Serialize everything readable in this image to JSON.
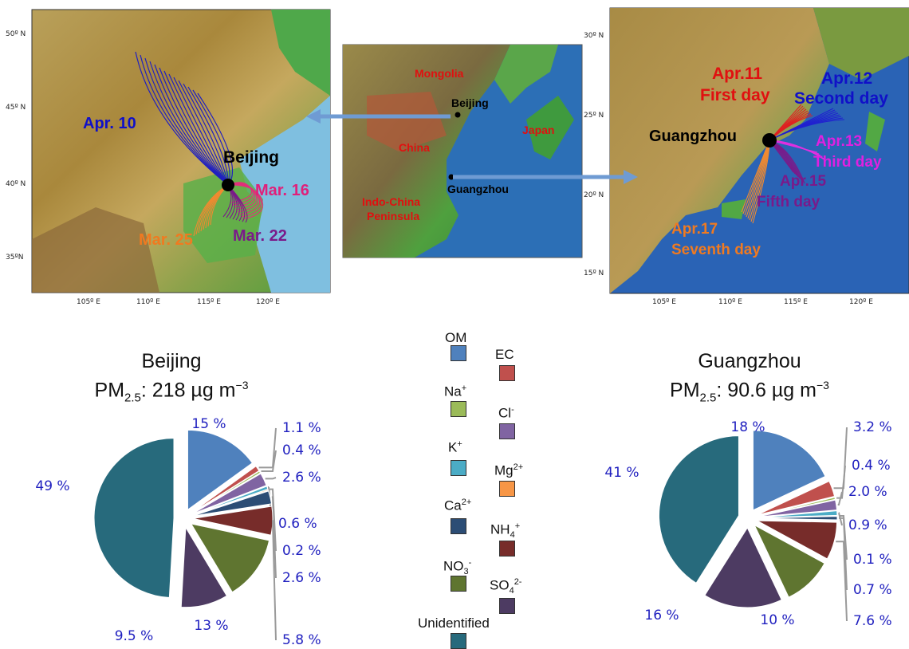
{
  "colors": {
    "OM": "#4f81bd",
    "EC": "#c0504d",
    "Na": "#9bbb59",
    "Cl": "#8064a2",
    "K": "#4bacc6",
    "Mg": "#f79646",
    "Ca": "#2c4d75",
    "NH4": "#772c2a",
    "NO3": "#5f7530",
    "SO4": "#4d3b62",
    "Unidentified": "#276a7c",
    "pct_text": "#1f1fbf"
  },
  "maps": {
    "beijing": {
      "lat_ticks": [
        "50º N",
        "45º N",
        "40º N",
        "35ºN"
      ],
      "lon_ticks": [
        "105º E",
        "110º E",
        "115º E",
        "120º E"
      ],
      "city": "Beijing",
      "dates": {
        "apr10": "Apr. 10",
        "mar16": "Mar. 16",
        "mar22": "Mar. 22",
        "mar25": "Mar. 25"
      }
    },
    "center": {
      "labels": {
        "mongolia": "Mongolia",
        "beijing": "Beijing",
        "china": "China",
        "japan": "Japan",
        "guangzhou": "Guangzhou",
        "indochina": "Indo-China",
        "peninsula": "Peninsula"
      }
    },
    "guangzhou": {
      "lat_ticks": [
        "30º N",
        "25º N",
        "20º N",
        "15º N"
      ],
      "lon_ticks": [
        "105º E",
        "110º E",
        "115º E",
        "120º E"
      ],
      "city": "Guangzhou",
      "dates": {
        "apr11": "Apr.11",
        "first": "First day",
        "apr12": "Apr.12",
        "second": "Second day",
        "apr13": "Apr.13",
        "third": "Third day",
        "apr15": "Apr.15",
        "fifth": "Fifth day",
        "apr17": "Apr.17",
        "seventh": "Seventh day"
      }
    }
  },
  "legend": {
    "OM": "OM",
    "EC": "EC",
    "Na": "Na",
    "Na_sup": "+",
    "Cl": "Cl",
    "Cl_sup": "-",
    "K": "K",
    "K_sup": "+",
    "Mg": "Mg",
    "Mg_sup": "2+",
    "Ca": "Ca",
    "Ca_sup": "2+",
    "NH4": "NH",
    "NH4_sub": "4",
    "NH4_sup": "+",
    "NO3": "NO",
    "NO3_sub": "3",
    "NO3_sup": "-",
    "SO4": "SO",
    "SO4_sub": "4",
    "SO4_sup": "2-",
    "Unidentified": "Unidentified"
  },
  "pies": {
    "beijing": {
      "city": "Beijing",
      "pm_prefix": "PM",
      "pm_sub": "2.5",
      "pm_value": ": 218 µg  m",
      "pm_exp": "−3",
      "label_text": {
        "OM": "15 %",
        "EC": "1.1 %",
        "Na": "0.4 %",
        "Cl": "2.6 %",
        "K": "0.6 %",
        "Mg": "0.2 %",
        "Ca": "2.6 %",
        "NH4": "5.8 %",
        "NO3": "13 %",
        "SO4": "9.5 %",
        "Unidentified": "49 %"
      }
    },
    "guangzhou": {
      "city": "Guangzhou",
      "pm_prefix": "PM",
      "pm_sub": "2.5",
      "pm_value": ": 90.6 µg  m",
      "pm_exp": "−3",
      "label_text": {
        "OM": "18 %",
        "EC": "3.2 %",
        "Na": "0.4 %",
        "Cl": "2.0 %",
        "K": "0.9 %",
        "Mg": "0.1 %",
        "Ca": "0.7 %",
        "NH4": "7.6 %",
        "NO3": "10 %",
        "SO4": "16 %",
        "Unidentified": "41 %"
      }
    }
  },
  "chart_data": [
    {
      "type": "pie",
      "title": "Beijing",
      "subtitle": "PM2.5: 218 µg m−3",
      "labels": [
        "OM",
        "EC",
        "Na+",
        "Cl-",
        "K+",
        "Mg2+",
        "Ca2+",
        "NH4+",
        "NO3-",
        "SO42-",
        "Unidentified"
      ],
      "values": [
        15,
        1.1,
        0.4,
        2.6,
        0.6,
        0.2,
        2.6,
        5.8,
        13,
        9.5,
        49
      ]
    },
    {
      "type": "pie",
      "title": "Guangzhou",
      "subtitle": "PM2.5: 90.6 µg m−3",
      "labels": [
        "OM",
        "EC",
        "Na+",
        "Cl-",
        "K+",
        "Mg2+",
        "Ca2+",
        "NH4+",
        "NO3-",
        "SO42-",
        "Unidentified"
      ],
      "values": [
        18,
        3.2,
        0.4,
        2.0,
        0.9,
        0.1,
        0.7,
        7.6,
        10,
        16,
        41
      ]
    }
  ]
}
